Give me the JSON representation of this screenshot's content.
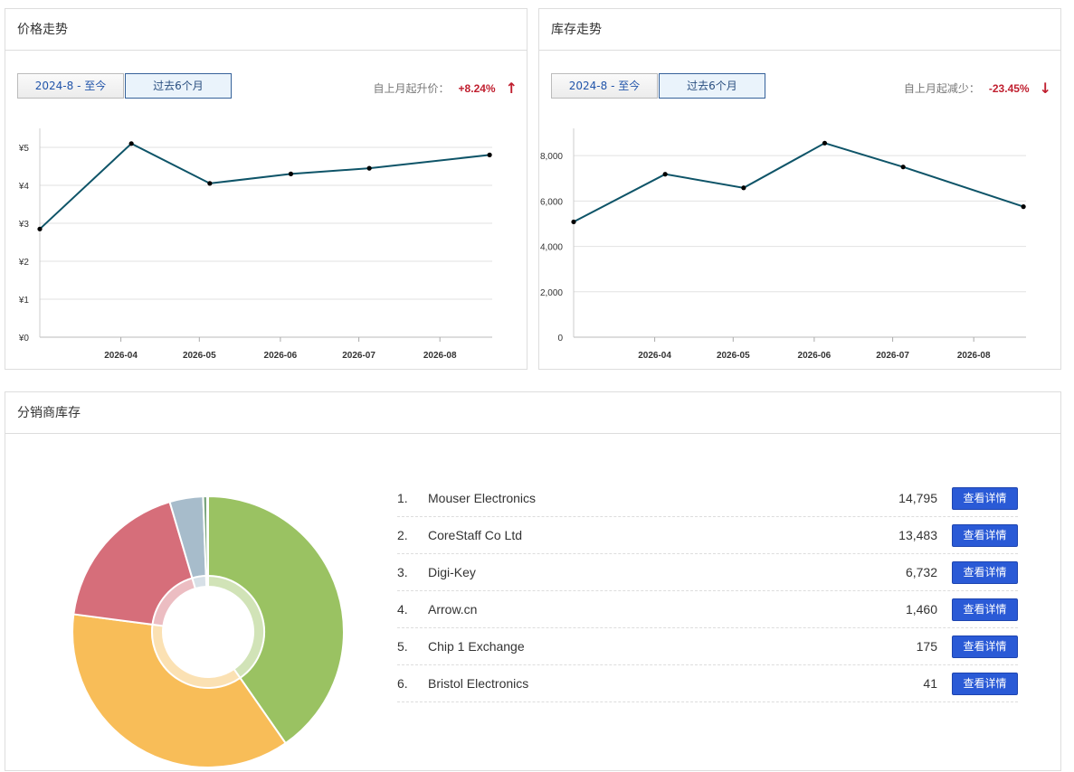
{
  "price_panel": {
    "title": "价格走势",
    "tabs": [
      "2024-8 - 至今",
      "过去6个月"
    ],
    "active_tab": 1,
    "change_label": "自上月起升价：",
    "change_value": "+8.24%",
    "change_arrow": "↑",
    "line_color": "#0e5468"
  },
  "stock_panel": {
    "title": "库存走势",
    "tabs": [
      "2024-8 - 至今",
      "过去6个月"
    ],
    "active_tab": 1,
    "change_label": "自上月起减少：",
    "change_value": "-23.45%",
    "change_arrow": "↓",
    "line_color": "#0e5468"
  },
  "distributor_panel": {
    "title": "分销商库存",
    "button_label": "查看详情",
    "rows": [
      {
        "index": "1.",
        "name": "Mouser Electronics",
        "qty": "14,795"
      },
      {
        "index": "2.",
        "name": "CoreStaff Co Ltd",
        "qty": "13,483"
      },
      {
        "index": "3.",
        "name": "Digi-Key",
        "qty": "6,732"
      },
      {
        "index": "4.",
        "name": "Arrow.cn",
        "qty": "1,460"
      },
      {
        "index": "5.",
        "name": "Chip 1 Exchange",
        "qty": "175"
      },
      {
        "index": "6.",
        "name": "Bristol Electronics",
        "qty": "41"
      }
    ]
  },
  "chart_data": [
    {
      "type": "line",
      "x": [
        "2026-03-01",
        "2026-04-05",
        "2026-05-05",
        "2026-06-05",
        "2026-07-05",
        "2026-08-20"
      ],
      "values": [
        2.85,
        5.1,
        4.05,
        4.3,
        4.45,
        4.8
      ],
      "xticks": [
        "2026-04",
        "2026-05",
        "2026-06",
        "2026-07",
        "2026-08"
      ],
      "yticks": [
        "¥0",
        "¥1",
        "¥2",
        "¥3",
        "¥4",
        "¥5"
      ],
      "ylim": [
        0,
        5.5
      ],
      "grid": true
    },
    {
      "type": "line",
      "x": [
        "2026-03-01",
        "2026-04-05",
        "2026-05-05",
        "2026-06-05",
        "2026-07-05",
        "2026-08-20"
      ],
      "values": [
        5080,
        7180,
        6580,
        8550,
        7500,
        5750
      ],
      "xticks": [
        "2026-04",
        "2026-05",
        "2026-06",
        "2026-07",
        "2026-08"
      ],
      "yticks": [
        "0",
        "2,000",
        "4,000",
        "6,000",
        "8,000"
      ],
      "ylim": [
        0,
        9200
      ],
      "grid": true
    },
    {
      "type": "pie",
      "categories": [
        "Mouser Electronics",
        "CoreStaff Co Ltd",
        "Digi-Key",
        "Arrow.cn",
        "Chip 1 Exchange",
        "Bristol Electronics"
      ],
      "values": [
        14795,
        13483,
        6732,
        1460,
        175,
        41
      ],
      "colors": [
        "#9ac262",
        "#f8bd58",
        "#d66e7a",
        "#a7bccb",
        "#7aa57e",
        "#e5d57a"
      ]
    }
  ]
}
